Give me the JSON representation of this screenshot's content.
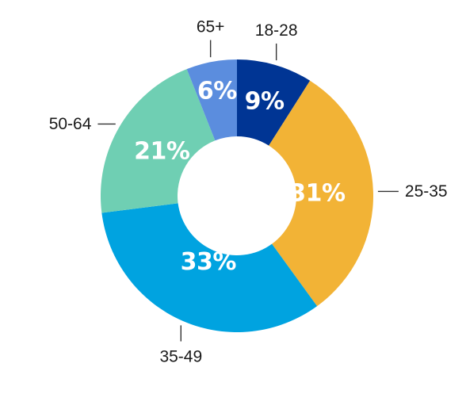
{
  "chart_data": {
    "type": "pie",
    "variant": "donut",
    "title": "",
    "categories": [
      "18-28",
      "25-35",
      "35-49",
      "50-64",
      "65+"
    ],
    "values": [
      9,
      31,
      33,
      21,
      6
    ],
    "value_labels": [
      "9%",
      "31%",
      "33%",
      "21%",
      "6%"
    ],
    "colors": [
      "#003594",
      "#F2B336",
      "#00A3E0",
      "#6FCFB3",
      "#5B8DDE"
    ],
    "start_angle": "12 o'clock",
    "direction": "clockwise",
    "legend": "none"
  }
}
